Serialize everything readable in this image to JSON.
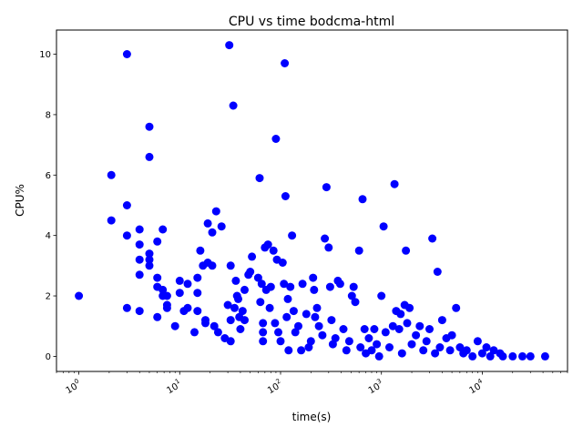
{
  "chart_data": {
    "type": "scatter",
    "title": "CPU vs time bodcma-html",
    "xlabel": "time(s)",
    "ylabel": "CPU%",
    "xscale": "log",
    "xlim": [
      0.6,
      70000
    ],
    "ylim": [
      -0.5,
      10.8
    ],
    "grid": false,
    "legend": "none",
    "point_color": "#0000ff",
    "x_ticks": [
      {
        "value": 1,
        "base": "10",
        "exp": "0"
      },
      {
        "value": 10,
        "base": "10",
        "exp": "1"
      },
      {
        "value": 100,
        "base": "10",
        "exp": "2"
      },
      {
        "value": 1000,
        "base": "10",
        "exp": "3"
      },
      {
        "value": 10000,
        "base": "10",
        "exp": "4"
      }
    ],
    "y_ticks": [
      0,
      2,
      4,
      6,
      8,
      10
    ],
    "points": [
      [
        1.0,
        2.0
      ],
      [
        2.1,
        6.0
      ],
      [
        2.1,
        4.5
      ],
      [
        3.0,
        10.0
      ],
      [
        3.0,
        5.0
      ],
      [
        3.0,
        4.0
      ],
      [
        3.0,
        1.6
      ],
      [
        4.0,
        4.2
      ],
      [
        4.0,
        3.7
      ],
      [
        4.0,
        3.2
      ],
      [
        4.0,
        2.7
      ],
      [
        4.0,
        1.5
      ],
      [
        5.0,
        7.6
      ],
      [
        5.0,
        6.6
      ],
      [
        5.0,
        3.4
      ],
      [
        5.0,
        3.2
      ],
      [
        5.0,
        3.0
      ],
      [
        6.0,
        3.8
      ],
      [
        6.0,
        2.6
      ],
      [
        6.0,
        2.3
      ],
      [
        6.0,
        1.3
      ],
      [
        6.8,
        4.2
      ],
      [
        6.8,
        2.2
      ],
      [
        6.8,
        2.0
      ],
      [
        7.5,
        2.0
      ],
      [
        7.5,
        1.7
      ],
      [
        7.5,
        1.6
      ],
      [
        9.0,
        1.0
      ],
      [
        10.0,
        2.5
      ],
      [
        10.0,
        2.1
      ],
      [
        11.0,
        1.5
      ],
      [
        12.0,
        2.4
      ],
      [
        12.0,
        1.6
      ],
      [
        14.0,
        0.8
      ],
      [
        15.0,
        2.6
      ],
      [
        15.0,
        2.1
      ],
      [
        15.0,
        1.5
      ],
      [
        16.0,
        3.5
      ],
      [
        17.0,
        3.0
      ],
      [
        18.0,
        1.2
      ],
      [
        18.0,
        1.1
      ],
      [
        19.0,
        4.4
      ],
      [
        19.0,
        3.1
      ],
      [
        21.0,
        4.1
      ],
      [
        21.0,
        3.0
      ],
      [
        22.0,
        1.0
      ],
      [
        23.0,
        4.8
      ],
      [
        24.0,
        0.8
      ],
      [
        26.0,
        4.3
      ],
      [
        28.0,
        0.6
      ],
      [
        30.0,
        1.7
      ],
      [
        31.0,
        10.3
      ],
      [
        32.0,
        3.0
      ],
      [
        32.0,
        1.2
      ],
      [
        32.0,
        0.5
      ],
      [
        34.0,
        8.3
      ],
      [
        35.0,
        1.6
      ],
      [
        36.0,
        2.5
      ],
      [
        37.0,
        2.0
      ],
      [
        38.0,
        1.9
      ],
      [
        39.0,
        1.3
      ],
      [
        40.0,
        0.9
      ],
      [
        42.0,
        1.5
      ],
      [
        44.0,
        2.2
      ],
      [
        44.0,
        1.2
      ],
      [
        48.0,
        2.7
      ],
      [
        50.0,
        2.8
      ],
      [
        52.0,
        3.3
      ],
      [
        60.0,
        2.6
      ],
      [
        62.0,
        5.9
      ],
      [
        63.0,
        1.8
      ],
      [
        65.0,
        2.4
      ],
      [
        67.0,
        1.1
      ],
      [
        67.0,
        0.8
      ],
      [
        67.0,
        0.5
      ],
      [
        70.0,
        3.6
      ],
      [
        72.0,
        2.2
      ],
      [
        75.0,
        3.7
      ],
      [
        78.0,
        1.6
      ],
      [
        80.0,
        2.3
      ],
      [
        85.0,
        3.5
      ],
      [
        88.0,
        1.1
      ],
      [
        90.0,
        7.2
      ],
      [
        92.0,
        3.2
      ],
      [
        95.0,
        0.8
      ],
      [
        100.0,
        0.5
      ],
      [
        105.0,
        3.1
      ],
      [
        108.0,
        2.4
      ],
      [
        110.0,
        9.7
      ],
      [
        112.0,
        5.3
      ],
      [
        115.0,
        1.3
      ],
      [
        118.0,
        1.9
      ],
      [
        120.0,
        0.2
      ],
      [
        125.0,
        2.3
      ],
      [
        130.0,
        4.0
      ],
      [
        135.0,
        1.5
      ],
      [
        140.0,
        0.8
      ],
      [
        150.0,
        1.0
      ],
      [
        160.0,
        0.2
      ],
      [
        165.0,
        2.4
      ],
      [
        180.0,
        1.4
      ],
      [
        190.0,
        0.3
      ],
      [
        200.0,
        0.5
      ],
      [
        210.0,
        2.6
      ],
      [
        215.0,
        2.2
      ],
      [
        220.0,
        1.3
      ],
      [
        230.0,
        1.6
      ],
      [
        240.0,
        1.0
      ],
      [
        260.0,
        0.7
      ],
      [
        275.0,
        3.9
      ],
      [
        285.0,
        5.6
      ],
      [
        300.0,
        3.6
      ],
      [
        310.0,
        2.3
      ],
      [
        320.0,
        1.2
      ],
      [
        330.0,
        0.4
      ],
      [
        350.0,
        0.6
      ],
      [
        370.0,
        2.5
      ],
      [
        390.0,
        2.4
      ],
      [
        420.0,
        0.9
      ],
      [
        450.0,
        0.2
      ],
      [
        480.0,
        0.5
      ],
      [
        510.0,
        2.0
      ],
      [
        530.0,
        2.3
      ],
      [
        550.0,
        1.8
      ],
      [
        600.0,
        3.5
      ],
      [
        620.0,
        0.3
      ],
      [
        650.0,
        5.2
      ],
      [
        680.0,
        0.9
      ],
      [
        700.0,
        0.1
      ],
      [
        750.0,
        0.6
      ],
      [
        800.0,
        0.2
      ],
      [
        850.0,
        0.9
      ],
      [
        900.0,
        0.4
      ],
      [
        950.0,
        0.0
      ],
      [
        1000.0,
        2.0
      ],
      [
        1050.0,
        4.3
      ],
      [
        1100.0,
        0.8
      ],
      [
        1200.0,
        0.3
      ],
      [
        1300.0,
        1.0
      ],
      [
        1350.0,
        5.7
      ],
      [
        1400.0,
        1.5
      ],
      [
        1500.0,
        0.9
      ],
      [
        1550.0,
        1.4
      ],
      [
        1600.0,
        0.1
      ],
      [
        1700.0,
        1.7
      ],
      [
        1750.0,
        3.5
      ],
      [
        1800.0,
        1.1
      ],
      [
        1900.0,
        1.6
      ],
      [
        2000.0,
        0.4
      ],
      [
        2200.0,
        0.7
      ],
      [
        2400.0,
        1.0
      ],
      [
        2600.0,
        0.2
      ],
      [
        2800.0,
        0.5
      ],
      [
        3000.0,
        0.9
      ],
      [
        3200.0,
        3.9
      ],
      [
        3400.0,
        0.1
      ],
      [
        3600.0,
        2.8
      ],
      [
        3800.0,
        0.3
      ],
      [
        4000.0,
        1.2
      ],
      [
        4400.0,
        0.6
      ],
      [
        4800.0,
        0.2
      ],
      [
        5000.0,
        0.7
      ],
      [
        5500.0,
        1.6
      ],
      [
        6000.0,
        0.3
      ],
      [
        6500.0,
        0.1
      ],
      [
        7000.0,
        0.2
      ],
      [
        8000.0,
        0.0
      ],
      [
        9000.0,
        0.5
      ],
      [
        10000.0,
        0.1
      ],
      [
        11000.0,
        0.3
      ],
      [
        12000.0,
        0.0
      ],
      [
        13000.0,
        0.2
      ],
      [
        15000.0,
        0.1
      ],
      [
        16000.0,
        0.0
      ],
      [
        20000.0,
        0.0
      ],
      [
        25000.0,
        0.0
      ],
      [
        30000.0,
        0.0
      ],
      [
        42000.0,
        0.0
      ]
    ]
  }
}
